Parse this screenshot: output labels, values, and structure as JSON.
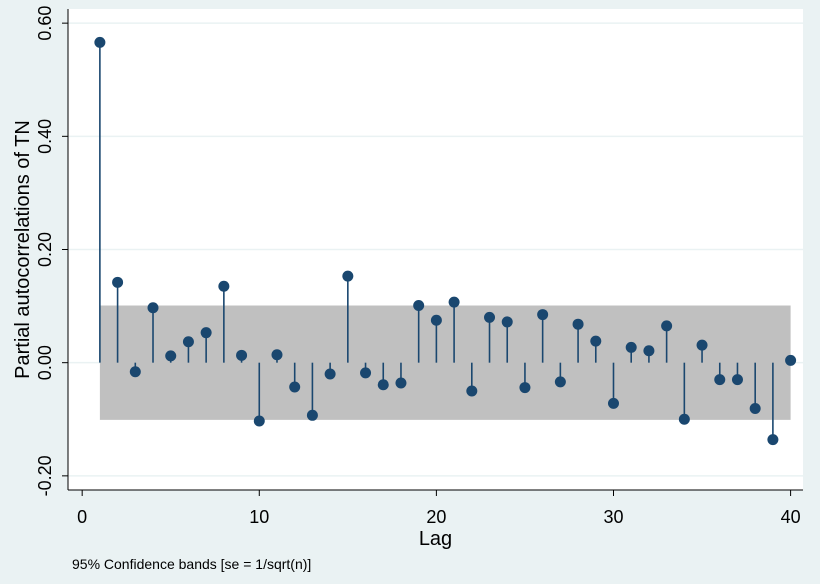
{
  "chart_data": {
    "type": "scatter",
    "style": "stem with confidence band",
    "title": "",
    "xlabel": "Lag",
    "ylabel": "Partial autocorrelations of TN",
    "note": "95% Confidence bands [se = 1/sqrt(n)]",
    "xlim": [
      -0.8,
      40.7
    ],
    "ylim": [
      -0.225,
      0.625
    ],
    "xticks": [
      0,
      10,
      20,
      30,
      40
    ],
    "xtick_labels": [
      "0",
      "10",
      "20",
      "30",
      "40"
    ],
    "yticks": [
      -0.2,
      0,
      0.2,
      0.4,
      0.6
    ],
    "ytick_labels": [
      "-0.20",
      "0.00",
      "0.20",
      "0.40",
      "0.60"
    ],
    "grid": true,
    "confidence_band": {
      "lower": -0.101,
      "upper": 0.101
    },
    "colors": {
      "background": "#eaf2f3",
      "plot_area": "#ffffff",
      "band": "#c0c0c0",
      "marker": "#1a476f",
      "grid": "#eaf2f3"
    },
    "x": [
      1,
      2,
      3,
      4,
      5,
      6,
      7,
      8,
      9,
      10,
      11,
      12,
      13,
      14,
      15,
      16,
      17,
      18,
      19,
      20,
      21,
      22,
      23,
      24,
      25,
      26,
      27,
      28,
      29,
      30,
      31,
      32,
      33,
      34,
      35,
      36,
      37,
      38,
      39,
      40
    ],
    "values": [
      0.566,
      0.142,
      -0.016,
      0.097,
      0.012,
      0.037,
      0.053,
      0.135,
      0.013,
      -0.103,
      0.014,
      -0.043,
      -0.093,
      -0.02,
      0.153,
      -0.018,
      -0.039,
      -0.036,
      0.101,
      0.075,
      0.107,
      -0.05,
      0.08,
      0.072,
      -0.044,
      0.085,
      -0.034,
      0.068,
      0.038,
      -0.072,
      0.027,
      0.021,
      0.065,
      -0.1,
      0.031,
      -0.03,
      -0.03,
      -0.081,
      -0.136,
      0.004
    ]
  }
}
